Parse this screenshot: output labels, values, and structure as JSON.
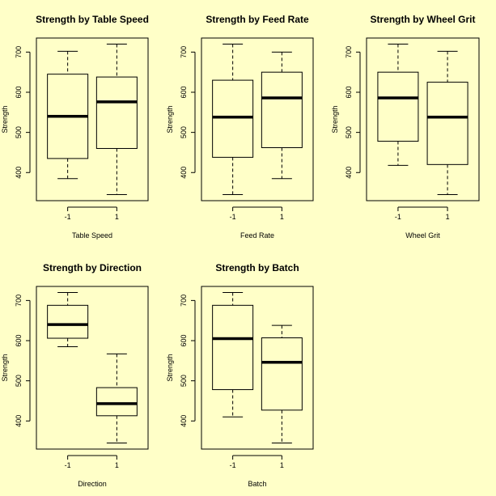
{
  "background_color": "#ffffc8",
  "chart_data": [
    {
      "type": "boxplot",
      "title": "Strength by Table Speed",
      "xlabel": "Table Speed",
      "ylabel": "Strength",
      "categories": [
        "-1",
        "1"
      ],
      "ylim": [
        330,
        735
      ],
      "yticks": [
        "400",
        "500",
        "600",
        "700"
      ],
      "boxes": [
        {
          "category": "-1",
          "min": 385,
          "q1": 435,
          "median": 540,
          "q3": 645,
          "max": 702
        },
        {
          "category": "1",
          "min": 345,
          "q1": 460,
          "median": 576,
          "q3": 638,
          "max": 720
        }
      ]
    },
    {
      "type": "boxplot",
      "title": "Strength by Feed Rate",
      "xlabel": "Feed Rate",
      "ylabel": "Strength",
      "categories": [
        "-1",
        "1"
      ],
      "ylim": [
        330,
        735
      ],
      "yticks": [
        "400",
        "500",
        "600",
        "700"
      ],
      "boxes": [
        {
          "category": "-1",
          "min": 345,
          "q1": 438,
          "median": 538,
          "q3": 630,
          "max": 720
        },
        {
          "category": "1",
          "min": 385,
          "q1": 462,
          "median": 586,
          "q3": 650,
          "max": 700
        }
      ]
    },
    {
      "type": "boxplot",
      "title": "Strength by Wheel Grit",
      "xlabel": "Wheel Grit",
      "ylabel": "Strength",
      "categories": [
        "-1",
        "1"
      ],
      "ylim": [
        330,
        735
      ],
      "yticks": [
        "400",
        "500",
        "600",
        "700"
      ],
      "boxes": [
        {
          "category": "-1",
          "min": 418,
          "q1": 478,
          "median": 586,
          "q3": 650,
          "max": 720
        },
        {
          "category": "1",
          "min": 345,
          "q1": 420,
          "median": 538,
          "q3": 625,
          "max": 702
        }
      ]
    },
    {
      "type": "boxplot",
      "title": "Strength by Direction",
      "xlabel": "Direction",
      "ylabel": "Strength",
      "categories": [
        "-1",
        "1"
      ],
      "ylim": [
        330,
        735
      ],
      "yticks": [
        "400",
        "500",
        "600",
        "700"
      ],
      "boxes": [
        {
          "category": "-1",
          "min": 585,
          "q1": 606,
          "median": 640,
          "q3": 688,
          "max": 720
        },
        {
          "category": "1",
          "min": 345,
          "q1": 413,
          "median": 443,
          "q3": 483,
          "max": 567
        }
      ]
    },
    {
      "type": "boxplot",
      "title": "Strength by Batch",
      "xlabel": "Batch",
      "ylabel": "Strength",
      "categories": [
        "-1",
        "1"
      ],
      "ylim": [
        330,
        735
      ],
      "yticks": [
        "400",
        "500",
        "600",
        "700"
      ],
      "boxes": [
        {
          "category": "-1",
          "min": 410,
          "q1": 478,
          "median": 605,
          "q3": 688,
          "max": 720
        },
        {
          "category": "1",
          "min": 345,
          "q1": 427,
          "median": 546,
          "q3": 607,
          "max": 638
        }
      ]
    }
  ]
}
